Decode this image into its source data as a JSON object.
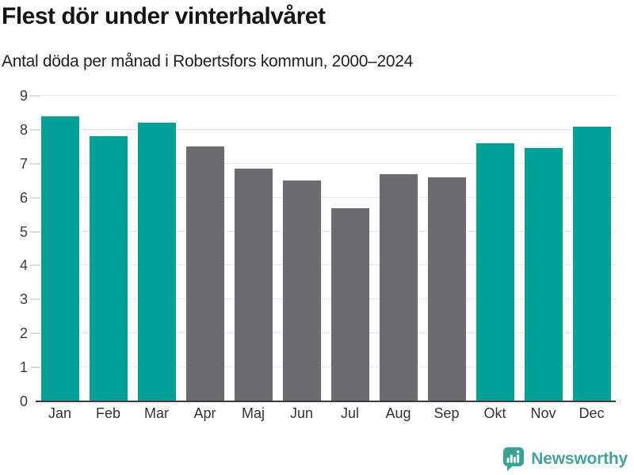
{
  "title": "Flest dör under vinterhalvåret",
  "subtitle": "Antal döda per månad i Robertsfors kommun, 2000–2024",
  "chart_data": {
    "type": "bar",
    "categories": [
      "Jan",
      "Feb",
      "Mar",
      "Apr",
      "Maj",
      "Jun",
      "Jul",
      "Aug",
      "Sep",
      "Okt",
      "Nov",
      "Dec"
    ],
    "values": [
      8.4,
      7.8,
      8.2,
      7.5,
      6.85,
      6.5,
      5.7,
      6.7,
      6.6,
      7.6,
      7.45,
      8.1
    ],
    "title": "Flest dör under vinterhalvåret",
    "subtitle": "Antal döda per månad i Robertsfors kommun, 2000–2024",
    "xlabel": "",
    "ylabel": "",
    "ylim": [
      0,
      9
    ],
    "yticks": [
      0,
      1,
      2,
      3,
      4,
      5,
      6,
      7,
      8,
      9
    ],
    "grid": true,
    "legend": "none",
    "highlighted_categories": [
      "Jan",
      "Feb",
      "Mar",
      "Okt",
      "Nov",
      "Dec"
    ],
    "colors": {
      "highlight": "#00a096",
      "muted": "#6e6b70",
      "gridline": "#e7e7e7",
      "axis": "#3d3d3d"
    }
  },
  "footer": {
    "brand": "Newsworthy",
    "logo_icon": "bar-chart-speech-bubble-icon",
    "brand_color": "#4aa19a"
  }
}
